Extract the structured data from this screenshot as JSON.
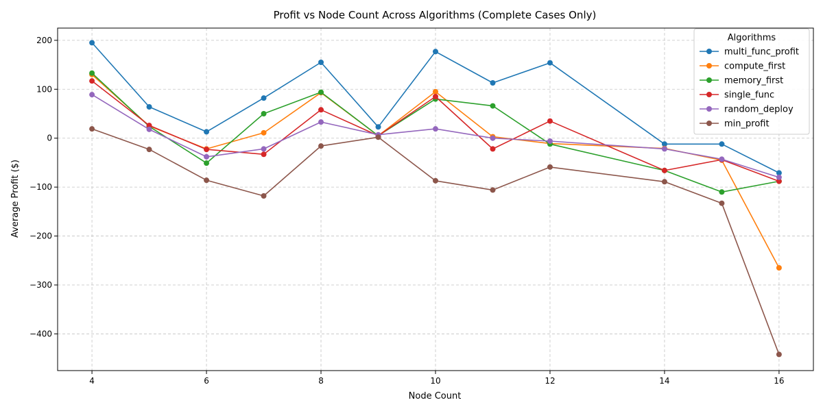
{
  "chart_data": {
    "type": "line",
    "title": "Profit vs Node Count Across Algorithms (Complete Cases Only)",
    "xlabel": "Node Count",
    "ylabel": "Average Profit ($)",
    "x": [
      4,
      5,
      6,
      7,
      8,
      9,
      10,
      11,
      12,
      14,
      15,
      16
    ],
    "xlim": [
      3.4,
      16.6
    ],
    "ylim": [
      -475,
      225
    ],
    "xticks": [
      4,
      6,
      8,
      10,
      12,
      14,
      16
    ],
    "yticks": [
      -400,
      -300,
      -200,
      -100,
      0,
      100,
      200
    ],
    "ytick_labels": [
      "−400",
      "−300",
      "−200",
      "−100",
      "0",
      "100",
      "200"
    ],
    "grid": true,
    "legend": {
      "title": "Algorithms",
      "position": "top-right"
    },
    "series": [
      {
        "name": "multi_func_profit",
        "color": "#1f77b4",
        "values": [
          195,
          64,
          13,
          82,
          155,
          23,
          177,
          113,
          154,
          -12,
          -12,
          -71
        ]
      },
      {
        "name": "compute_first",
        "color": "#ff7f0e",
        "values": [
          130,
          25,
          -22,
          11,
          93,
          5,
          95,
          3,
          -11,
          -21,
          -45,
          -265
        ]
      },
      {
        "name": "memory_first",
        "color": "#2ca02c",
        "values": [
          133,
          24,
          -51,
          50,
          94,
          5,
          80,
          66,
          -12,
          -66,
          -110,
          -88
        ]
      },
      {
        "name": "single_func",
        "color": "#d62728",
        "values": [
          117,
          26,
          -23,
          -33,
          58,
          5,
          85,
          -22,
          35,
          -66,
          -44,
          -88
        ]
      },
      {
        "name": "random_deploy",
        "color": "#9467bd",
        "values": [
          89,
          18,
          -38,
          -22,
          33,
          7,
          19,
          0,
          -6,
          -22,
          -43,
          -80
        ]
      },
      {
        "name": "min_profit",
        "color": "#8c564b",
        "values": [
          19,
          -23,
          -86,
          -118,
          -16,
          2,
          -87,
          -106,
          -59,
          -89,
          -133,
          -442
        ]
      }
    ]
  }
}
